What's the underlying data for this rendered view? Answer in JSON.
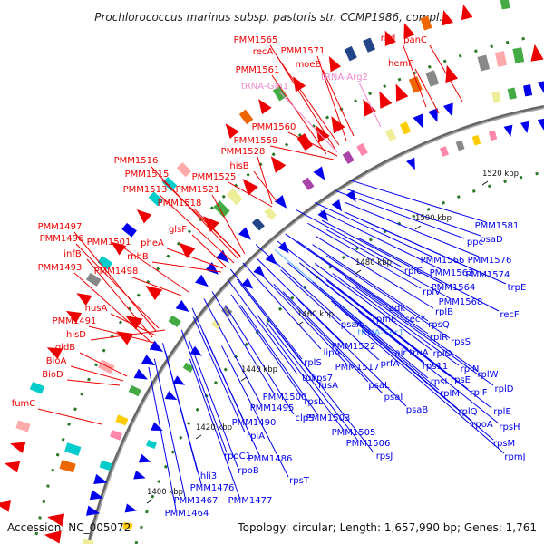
{
  "title": "Prochlorococcus marinus subsp. pastoris str. CCMP1986, compl...",
  "accession": "Accession: NC_005072",
  "topology": "Topology: circular; Length: 1,657,990 bp; Genes: 1,761",
  "colors": {
    "forward_label": "#ee0000",
    "reverse_label": "#0000ee",
    "trna_forward": "#ee88cc",
    "trna_reverse": "#44aaff",
    "backbone": "#888888"
  },
  "kbp_ticks": [
    "1400 kbp",
    "1420 kbp",
    "1440 kbp",
    "1460 kbp",
    "1480 kbp",
    "1500 kbp",
    "1520 kbp"
  ],
  "forward_labels": [
    "PMM1565",
    "recA",
    "PMM1571",
    "moeB",
    "PMM1561",
    "tRNA-Gln1",
    "tRNA-Arg2",
    "rnd",
    "panC",
    "hemF",
    "PMM1560",
    "PMM1559",
    "PMM1528",
    "hisB",
    "PMM1516",
    "PMM1515",
    "PMM1525",
    "PMM1513",
    "PMM1521",
    "PMM1518",
    "glsF",
    "PMM1497",
    "PMM1496",
    "PMM1501",
    "pheA",
    "rnhB",
    "infB",
    "PMM1493",
    "PMM1498",
    "nusA",
    "PMM1491",
    "hisD",
    "gidB",
    "BioA",
    "BioD",
    "fumC"
  ],
  "reverse_labels": [
    "PMM1581",
    "ppc",
    "psaD",
    "PMM1566",
    "PMM1576",
    "PMM1563",
    "PMM1574",
    "rplC",
    "PMM1564",
    "trpE",
    "rplV",
    "PMM1568",
    "adk",
    "rplB",
    "recF",
    "rpmE",
    "secY",
    "rpsQ",
    "tRNA-Ser1",
    "rplR",
    "rpsS",
    "psaA",
    "air",
    "truA",
    "rplO",
    "prfA",
    "PMM1522",
    "rps11",
    "rplN",
    "rplW",
    "lipA",
    "rpsE",
    "rplS",
    "PMM1517",
    "rplF",
    "rplD",
    "fusA",
    "tuf",
    "PMM1500",
    "rpsL",
    "rpsI",
    "rplM",
    "rps7",
    "PMM1495",
    "psaL",
    "PMM1503",
    "rplQ",
    "rplE",
    "PMM1490",
    "clpS",
    "psaI",
    "rpoA",
    "rpsH",
    "PMM1505",
    "psaB",
    "rpiA",
    "PMM1506",
    "rpsM",
    "PMM1486",
    "rpoC1",
    "rpsJ",
    "rpmJ",
    "rpoB",
    "rpsT",
    "hli3",
    "PMM1476",
    "PMM1477",
    "PMM1467",
    "PMM1464"
  ]
}
